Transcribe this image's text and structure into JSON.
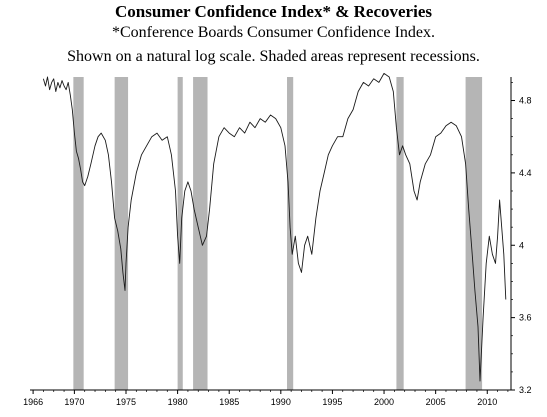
{
  "title": "Consumer Confidence Index* & Recoveries",
  "subtitle": "*Conference Boards Consumer Confidence Index.",
  "note": "Shown on a natural log scale. Shaded areas represent recessions.",
  "chart_data": {
    "type": "line",
    "title": "Consumer Confidence Index* & Recoveries",
    "xlabel": "",
    "ylabel": "",
    "yscale": "natural log",
    "xlim": [
      1965.7,
      2012.3
    ],
    "ylim": [
      3.2,
      4.93
    ],
    "x_ticks": [
      1966,
      1970,
      1975,
      1980,
      1985,
      1990,
      1995,
      2000,
      2005,
      2010
    ],
    "y_ticks": [
      3.2,
      3.6,
      4,
      4.4,
      4.8
    ],
    "y_tick_labels": [
      "3.2",
      "3.6",
      "4",
      "4.4",
      "4.8"
    ],
    "y_axis_side": "right",
    "grid": false,
    "line_color": "#1a1a1a",
    "recession_color": "#b5b5b5",
    "recessions": [
      [
        1969.9,
        1970.9
      ],
      [
        1973.9,
        1975.2
      ],
      [
        1980.0,
        1980.5
      ],
      [
        1981.5,
        1982.9
      ],
      [
        1990.6,
        1991.2
      ],
      [
        2001.2,
        2001.9
      ],
      [
        2007.9,
        2009.5
      ]
    ],
    "series": [
      {
        "x": [
          1967.0,
          1967.2,
          1967.4,
          1967.6,
          1967.8,
          1968.0,
          1968.2,
          1968.4,
          1968.6,
          1968.8,
          1969.0,
          1969.2,
          1969.4,
          1969.6,
          1969.8,
          1970.0,
          1970.2,
          1970.4,
          1970.6,
          1970.8,
          1971.0,
          1971.3,
          1971.6,
          1972.0,
          1972.3,
          1972.6,
          1973.0,
          1973.3,
          1973.6,
          1973.9,
          1974.2,
          1974.5,
          1974.7,
          1974.9,
          1975.0,
          1975.2,
          1975.5,
          1976.0,
          1976.5,
          1977.0,
          1977.5,
          1978.0,
          1978.5,
          1979.0,
          1979.4,
          1979.8,
          1980.0,
          1980.2,
          1980.4,
          1980.7,
          1981.0,
          1981.3,
          1981.6,
          1982.0,
          1982.4,
          1982.8,
          1983.1,
          1983.5,
          1984.0,
          1984.5,
          1985.0,
          1985.5,
          1986.0,
          1986.5,
          1987.0,
          1987.5,
          1988.0,
          1988.5,
          1989.0,
          1989.5,
          1990.0,
          1990.4,
          1990.7,
          1990.9,
          1991.1,
          1991.4,
          1991.7,
          1992.0,
          1992.3,
          1992.6,
          1993.0,
          1993.4,
          1993.8,
          1994.2,
          1994.6,
          1995.0,
          1995.5,
          1996.0,
          1996.5,
          1997.0,
          1997.5,
          1998.0,
          1998.5,
          1999.0,
          1999.5,
          2000.0,
          2000.5,
          2000.9,
          2001.2,
          2001.5,
          2001.8,
          2002.1,
          2002.5,
          2002.9,
          2003.2,
          2003.5,
          2004.0,
          2004.5,
          2005.0,
          2005.5,
          2006.0,
          2006.5,
          2007.0,
          2007.5,
          2007.9,
          2008.2,
          2008.5,
          2008.8,
          2009.1,
          2009.3,
          2009.6,
          2009.9,
          2010.2,
          2010.5,
          2010.8,
          2011.0,
          2011.2,
          2011.4,
          2011.6,
          2011.8
        ],
        "values": [
          4.92,
          4.88,
          4.93,
          4.86,
          4.9,
          4.92,
          4.85,
          4.9,
          4.87,
          4.91,
          4.88,
          4.86,
          4.9,
          4.83,
          4.75,
          4.62,
          4.52,
          4.48,
          4.42,
          4.35,
          4.33,
          4.38,
          4.45,
          4.55,
          4.6,
          4.62,
          4.58,
          4.5,
          4.35,
          4.15,
          4.08,
          3.98,
          3.85,
          3.75,
          3.9,
          4.1,
          4.25,
          4.4,
          4.5,
          4.55,
          4.6,
          4.62,
          4.58,
          4.6,
          4.5,
          4.3,
          4.05,
          3.9,
          4.15,
          4.3,
          4.35,
          4.3,
          4.2,
          4.1,
          4.0,
          4.05,
          4.2,
          4.45,
          4.6,
          4.65,
          4.62,
          4.6,
          4.65,
          4.62,
          4.68,
          4.65,
          4.7,
          4.68,
          4.72,
          4.7,
          4.65,
          4.55,
          4.35,
          4.1,
          3.95,
          4.05,
          3.9,
          3.85,
          4.0,
          4.05,
          3.95,
          4.15,
          4.3,
          4.4,
          4.5,
          4.55,
          4.6,
          4.6,
          4.7,
          4.75,
          4.85,
          4.9,
          4.88,
          4.92,
          4.9,
          4.95,
          4.93,
          4.85,
          4.65,
          4.5,
          4.55,
          4.5,
          4.45,
          4.3,
          4.25,
          4.35,
          4.45,
          4.5,
          4.6,
          4.62,
          4.66,
          4.68,
          4.66,
          4.6,
          4.45,
          4.2,
          3.98,
          3.75,
          3.55,
          3.25,
          3.6,
          3.9,
          4.05,
          3.95,
          3.9,
          4.05,
          4.25,
          4.1,
          3.95,
          3.7
        ]
      }
    ]
  }
}
